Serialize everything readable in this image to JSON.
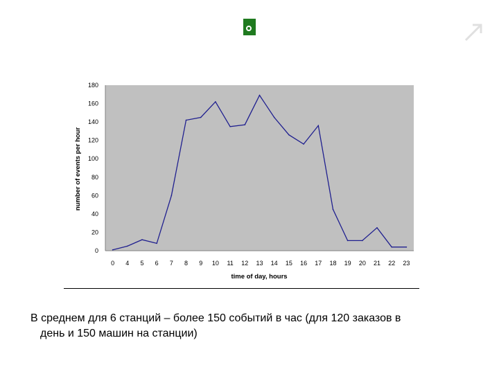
{
  "logo": {
    "color": "#1f7a1f",
    "icon": "green-square-logo-icon"
  },
  "corner_mark": {
    "icon": "faint-corner-mark-icon",
    "color": "#e0e0e0"
  },
  "chart_data": {
    "type": "line",
    "title": "",
    "xlabel": "time of day, hours",
    "ylabel": "number of events per hour",
    "ylim": [
      0,
      180
    ],
    "yticks": [
      "0",
      "20",
      "40",
      "60",
      "80",
      "100",
      "120",
      "140",
      "160",
      "180"
    ],
    "categories": [
      "0",
      "4",
      "5",
      "6",
      "7",
      "8",
      "9",
      "10",
      "11",
      "12",
      "13",
      "14",
      "15",
      "16",
      "17",
      "18",
      "19",
      "20",
      "21",
      "22",
      "23"
    ],
    "series": [
      {
        "values": [
          1,
          5,
          12,
          8,
          60,
          142,
          145,
          162,
          135,
          137,
          169,
          145,
          126,
          116,
          136,
          45,
          11,
          11,
          25,
          4,
          4
        ],
        "color": "#1f1f8f"
      }
    ],
    "plot_background": "#c0c0c0",
    "grid": false,
    "legend": "none"
  },
  "caption": {
    "line1": "В среднем для 6 станций – более 150 событий в час (для 120 заказов в",
    "line2": "день и 150 машин на станции)"
  }
}
